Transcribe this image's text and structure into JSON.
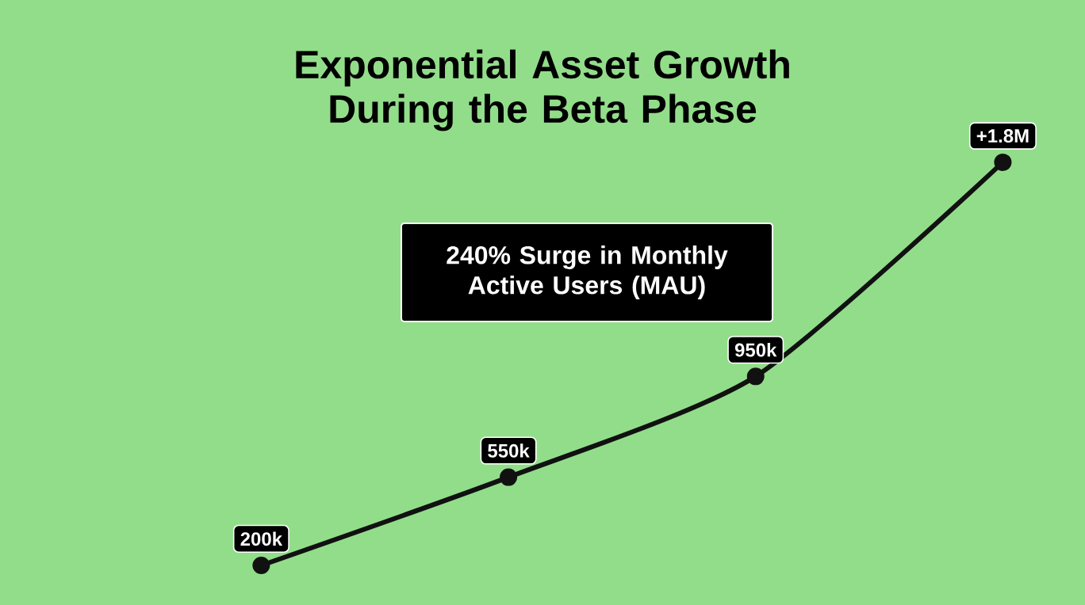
{
  "chart_data": {
    "type": "line",
    "title": "Exponential Asset Growth During the Beta Phase",
    "categories": [
      null,
      null,
      null,
      null
    ],
    "series": [
      {
        "color": "#111111",
        "values": [
          200000,
          550000,
          950000,
          1800000
        ],
        "value_labels": [
          "200k",
          "550k",
          "950k",
          "+1.8M"
        ]
      }
    ],
    "marker": "circle",
    "line_style": "solid",
    "annotations": [
      "240% Surge in Monthly Active Users (MAU)"
    ]
  }
}
